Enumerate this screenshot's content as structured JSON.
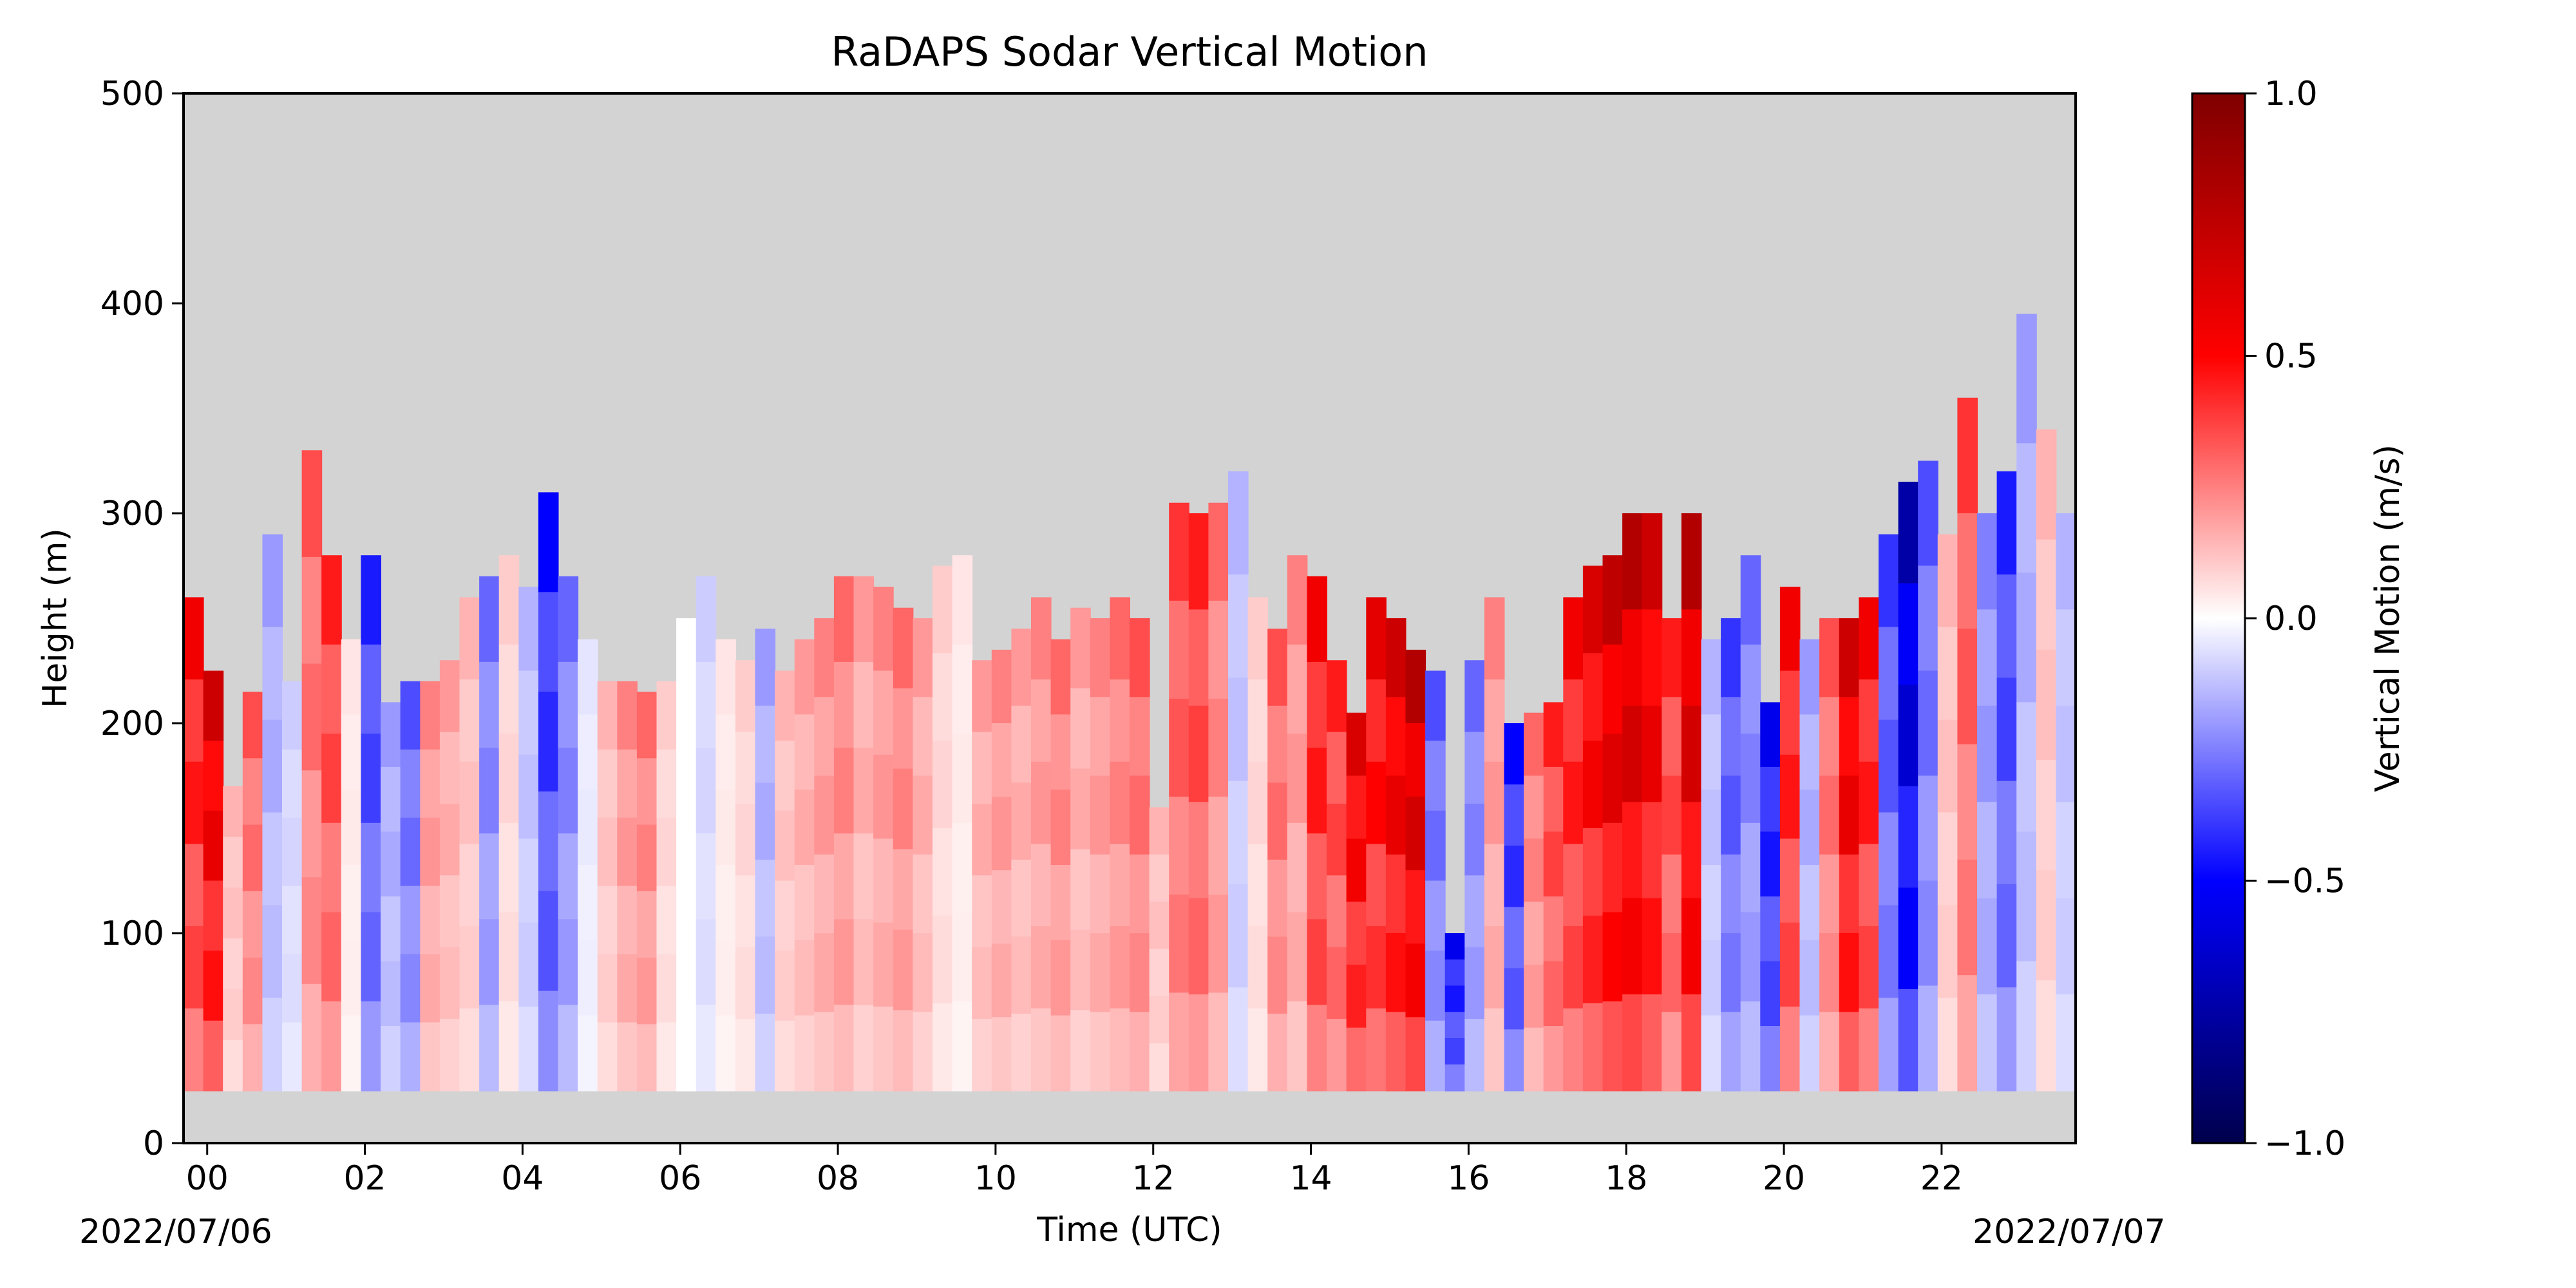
{
  "chart_data": {
    "type": "heatmap",
    "title": "RaDAPS Sodar Vertical Motion",
    "xlabel": "Time (UTC)",
    "ylabel": "Height (m)",
    "x_unit": "hour UTC",
    "xlim": [
      -0.3,
      23.7
    ],
    "ylim": [
      0,
      500
    ],
    "x_ticks": [
      0,
      2,
      4,
      6,
      8,
      10,
      12,
      14,
      16,
      18,
      20,
      22
    ],
    "x_tick_labels": [
      "00",
      "02",
      "04",
      "06",
      "08",
      "10",
      "12",
      "14",
      "16",
      "18",
      "20",
      "22"
    ],
    "y_ticks": [
      0,
      100,
      200,
      300,
      400,
      500
    ],
    "y_tick_labels": [
      "0",
      "100",
      "200",
      "300",
      "400",
      "500"
    ],
    "date_labels": {
      "start": "2022/07/06",
      "end": "2022/07/07"
    },
    "background_color": "#d3d3d3",
    "no_data_color": "#d3d3d3",
    "data_bottom_height": 25,
    "colormap": "seismic",
    "colorbar": {
      "label": "Vertical Motion (m/s)",
      "vmin": -1.0,
      "vmax": 1.0,
      "ticks": [
        -1.0,
        -0.5,
        0.0,
        0.5,
        1.0
      ],
      "tick_labels": [
        "−1.0",
        "−0.5",
        "0.0",
        "0.5",
        "1.0"
      ]
    },
    "time_step_hours": 0.25,
    "columns": [
      {
        "t": -0.3,
        "top": 260,
        "w": 0.55
      },
      {
        "t": -0.05,
        "top": 225,
        "w": 0.7
      },
      {
        "t": 0.2,
        "top": 170,
        "w": 0.15
      },
      {
        "t": 0.45,
        "top": 215,
        "w": 0.35
      },
      {
        "t": 0.7,
        "top": 290,
        "w": -0.2
      },
      {
        "t": 0.95,
        "top": 220,
        "w": -0.1
      },
      {
        "t": 1.2,
        "top": 330,
        "w": 0.35
      },
      {
        "t": 1.45,
        "top": 280,
        "w": 0.45
      },
      {
        "t": 1.7,
        "top": 240,
        "w": 0.05
      },
      {
        "t": 1.95,
        "top": 280,
        "w": -0.45
      },
      {
        "t": 2.2,
        "top": 210,
        "w": -0.2
      },
      {
        "t": 2.45,
        "top": 220,
        "w": -0.35
      },
      {
        "t": 2.7,
        "top": 220,
        "w": 0.25
      },
      {
        "t": 2.95,
        "top": 230,
        "w": 0.2
      },
      {
        "t": 3.2,
        "top": 260,
        "w": 0.15
      },
      {
        "t": 3.45,
        "top": 270,
        "w": -0.3
      },
      {
        "t": 3.7,
        "top": 280,
        "w": 0.1
      },
      {
        "t": 3.95,
        "top": 265,
        "w": -0.15
      },
      {
        "t": 4.2,
        "top": 310,
        "w": -0.5
      },
      {
        "t": 4.45,
        "top": 270,
        "w": -0.3
      },
      {
        "t": 4.7,
        "top": 240,
        "w": -0.05
      },
      {
        "t": 4.95,
        "top": 220,
        "w": 0.15
      },
      {
        "t": 5.2,
        "top": 220,
        "w": 0.25
      },
      {
        "t": 5.45,
        "top": 215,
        "w": 0.3
      },
      {
        "t": 5.7,
        "top": 220,
        "w": 0.1
      },
      {
        "t": 5.95,
        "top": 250,
        "w": 0.0
      },
      {
        "t": 6.2,
        "top": 270,
        "w": -0.1
      },
      {
        "t": 6.45,
        "top": 240,
        "w": 0.05
      },
      {
        "t": 6.7,
        "top": 230,
        "w": 0.1
      },
      {
        "t": 6.95,
        "top": 245,
        "w": -0.2
      },
      {
        "t": 7.2,
        "top": 225,
        "w": 0.15
      },
      {
        "t": 7.45,
        "top": 240,
        "w": 0.2
      },
      {
        "t": 7.7,
        "top": 250,
        "w": 0.25
      },
      {
        "t": 7.95,
        "top": 270,
        "w": 0.3
      },
      {
        "t": 8.2,
        "top": 270,
        "w": 0.2
      },
      {
        "t": 8.45,
        "top": 265,
        "w": 0.25
      },
      {
        "t": 8.7,
        "top": 255,
        "w": 0.3
      },
      {
        "t": 8.95,
        "top": 250,
        "w": 0.2
      },
      {
        "t": 9.2,
        "top": 275,
        "w": 0.1
      },
      {
        "t": 9.45,
        "top": 280,
        "w": 0.05
      },
      {
        "t": 9.7,
        "top": 230,
        "w": 0.2
      },
      {
        "t": 9.95,
        "top": 235,
        "w": 0.25
      },
      {
        "t": 10.2,
        "top": 245,
        "w": 0.2
      },
      {
        "t": 10.45,
        "top": 260,
        "w": 0.25
      },
      {
        "t": 10.7,
        "top": 240,
        "w": 0.3
      },
      {
        "t": 10.95,
        "top": 255,
        "w": 0.2
      },
      {
        "t": 11.2,
        "top": 250,
        "w": 0.25
      },
      {
        "t": 11.45,
        "top": 260,
        "w": 0.3
      },
      {
        "t": 11.7,
        "top": 250,
        "w": 0.35
      },
      {
        "t": 11.95,
        "top": 160,
        "w": 0.15
      },
      {
        "t": 12.2,
        "top": 305,
        "w": 0.4
      },
      {
        "t": 12.45,
        "top": 300,
        "w": 0.45
      },
      {
        "t": 12.7,
        "top": 305,
        "w": 0.3
      },
      {
        "t": 12.95,
        "top": 320,
        "w": -0.15
      },
      {
        "t": 13.2,
        "top": 260,
        "w": 0.1
      },
      {
        "t": 13.45,
        "top": 245,
        "w": 0.35
      },
      {
        "t": 13.7,
        "top": 280,
        "w": 0.25
      },
      {
        "t": 13.95,
        "top": 270,
        "w": 0.55
      },
      {
        "t": 14.2,
        "top": 230,
        "w": 0.45
      },
      {
        "t": 14.45,
        "top": 205,
        "w": 0.65
      },
      {
        "t": 14.7,
        "top": 260,
        "w": 0.6
      },
      {
        "t": 14.95,
        "top": 250,
        "w": 0.7
      },
      {
        "t": 15.2,
        "top": 235,
        "w": 0.8
      },
      {
        "t": 15.45,
        "top": 225,
        "w": -0.35
      },
      {
        "t": 15.7,
        "top": 100,
        "w": -0.55
      },
      {
        "t": 15.95,
        "top": 230,
        "w": -0.3
      },
      {
        "t": 16.2,
        "top": 260,
        "w": 0.25
      },
      {
        "t": 16.45,
        "top": 200,
        "w": -0.5
      },
      {
        "t": 16.7,
        "top": 205,
        "w": 0.3
      },
      {
        "t": 16.95,
        "top": 210,
        "w": 0.45
      },
      {
        "t": 17.2,
        "top": 260,
        "w": 0.55
      },
      {
        "t": 17.45,
        "top": 275,
        "w": 0.65
      },
      {
        "t": 17.7,
        "top": 280,
        "w": 0.75
      },
      {
        "t": 17.95,
        "top": 300,
        "w": 0.8
      },
      {
        "t": 18.2,
        "top": 300,
        "w": 0.7
      },
      {
        "t": 18.45,
        "top": 250,
        "w": 0.45
      },
      {
        "t": 18.7,
        "top": 300,
        "w": 0.8
      },
      {
        "t": 18.95,
        "top": 240,
        "w": -0.15
      },
      {
        "t": 19.2,
        "top": 250,
        "w": -0.4
      },
      {
        "t": 19.45,
        "top": 280,
        "w": -0.3
      },
      {
        "t": 19.7,
        "top": 210,
        "w": -0.55
      },
      {
        "t": 19.95,
        "top": 265,
        "w": 0.55
      },
      {
        "t": 20.2,
        "top": 240,
        "w": -0.2
      },
      {
        "t": 20.45,
        "top": 250,
        "w": 0.35
      },
      {
        "t": 20.7,
        "top": 250,
        "w": 0.7
      },
      {
        "t": 20.95,
        "top": 260,
        "w": 0.55
      },
      {
        "t": 21.2,
        "top": 290,
        "w": -0.4
      },
      {
        "t": 21.45,
        "top": 315,
        "w": -0.75
      },
      {
        "t": 21.7,
        "top": 325,
        "w": -0.35
      },
      {
        "t": 21.95,
        "top": 290,
        "w": 0.15
      },
      {
        "t": 22.2,
        "top": 355,
        "w": 0.4
      },
      {
        "t": 22.45,
        "top": 300,
        "w": -0.25
      },
      {
        "t": 22.7,
        "top": 320,
        "w": -0.45
      },
      {
        "t": 22.95,
        "top": 395,
        "w": -0.2
      },
      {
        "t": 23.2,
        "top": 340,
        "w": 0.15
      },
      {
        "t": 23.45,
        "top": 300,
        "w": -0.15
      }
    ]
  }
}
